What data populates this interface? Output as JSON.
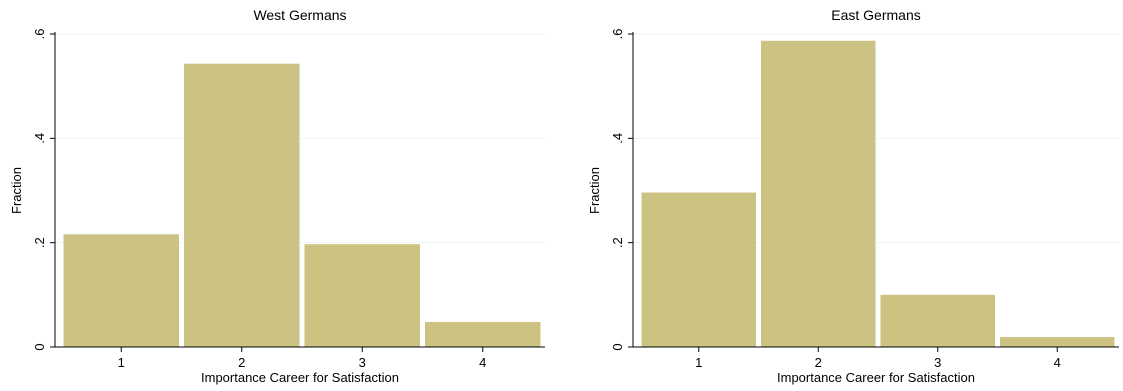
{
  "chart_data": [
    {
      "type": "bar",
      "title": "West Germans",
      "xlabel": "Importance Career for Satisfaction",
      "ylabel": "Fraction",
      "categories": [
        "1",
        "2",
        "3",
        "4"
      ],
      "values": [
        0.217,
        0.544,
        0.198,
        0.049
      ],
      "ylim": [
        0,
        0.6
      ],
      "yticks": [
        0,
        0.2,
        0.4,
        0.6
      ],
      "ytick_labels": [
        "0",
        ".2",
        ".4",
        ".6"
      ],
      "grid": true,
      "bar_color": "#ccc383"
    },
    {
      "type": "bar",
      "title": "East Germans",
      "xlabel": "Importance Career for Satisfaction",
      "ylabel": "Fraction",
      "categories": [
        "1",
        "2",
        "3",
        "4"
      ],
      "values": [
        0.297,
        0.588,
        0.101,
        0.02
      ],
      "ylim": [
        0,
        0.6
      ],
      "yticks": [
        0,
        0.2,
        0.4,
        0.6
      ],
      "ytick_labels": [
        "0",
        ".2",
        ".4",
        ".6"
      ],
      "grid": true,
      "bar_color": "#ccc383"
    }
  ],
  "colors": {
    "background": "#ffffff",
    "gridline": "#eaf2f3",
    "axis": "#000000"
  }
}
